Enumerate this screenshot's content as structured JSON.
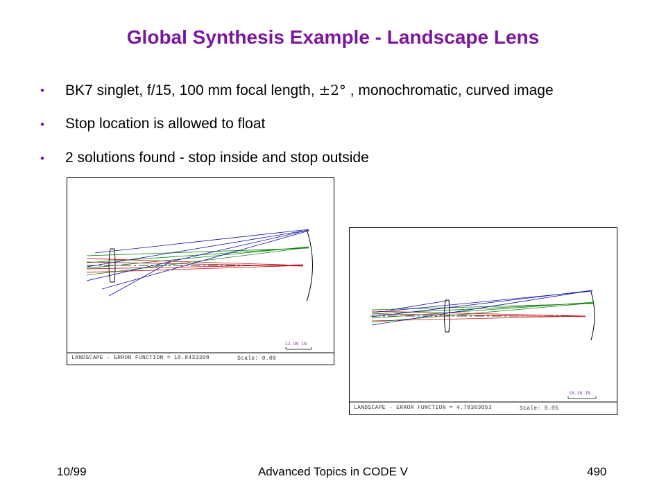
{
  "title": "Global Synthesis Example - Landscape Lens",
  "bullets": {
    "b1_pre": "BK7 singlet, f/15, 100 mm focal length, ",
    "b1_sym": "±2°",
    "b1_post": " , monochromatic, curved image",
    "b2": "Stop location is allowed to float",
    "b3": "2 solutions found - stop inside and stop outside"
  },
  "diagram1": {
    "caption": "LANDSCAPE - ERROR FUNCTION = 10.8433308",
    "scale": "Scale:  0.08",
    "scalebar": "12.99   IN"
  },
  "diagram2": {
    "caption": "LANDSCAPE - ERROR FUNCTION = 4.78303053",
    "scale": "Scale:  0.05",
    "scalebar": "18.18   IN"
  },
  "footer": {
    "date": "10/99",
    "course": "Advanced Topics in CODE V",
    "page": "490"
  },
  "colors": {
    "title": "#7b169c",
    "ray_blue": "#1010a0",
    "ray_green": "#108010",
    "ray_red": "#c01010"
  }
}
